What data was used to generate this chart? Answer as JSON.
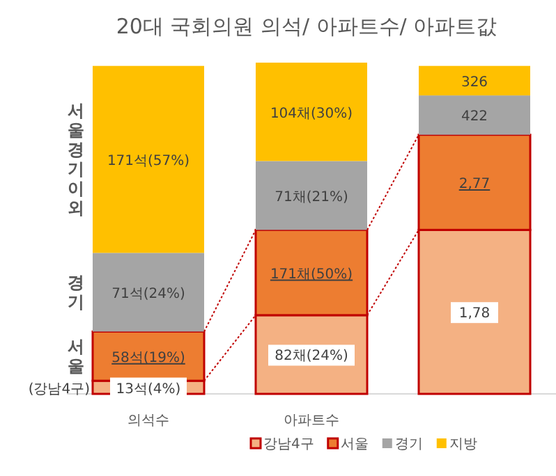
{
  "chart_data": {
    "type": "bar",
    "title": "20대 국회의원 의석/ 아파트수/ 아파트값",
    "categories": [
      "의석수",
      "아파트수",
      null
    ],
    "stacked": true,
    "series": [
      {
        "name": "강남4구",
        "color": "#f4b183",
        "values": [
          4,
          24,
          50
        ],
        "value_labels": [
          "13석(4%)",
          "82채(24%)",
          null
        ]
      },
      {
        "name": "서울",
        "color": "#ed7d31",
        "values": [
          15,
          26,
          29
        ],
        "value_labels": [
          null,
          null,
          null
        ]
      },
      {
        "name": "경기",
        "color": "#a5a5a5",
        "values": [
          24,
          21,
          12
        ],
        "value_labels": [
          "71석(24%)",
          "71채(21%)",
          null
        ]
      },
      {
        "name": "지방",
        "color": "#ffc000",
        "values": [
          57,
          30,
          9
        ],
        "value_labels": [
          "171석(57%)",
          "104채(30%)",
          null
        ]
      }
    ],
    "annotations": [
      "(강남4구)",
      "서울",
      "경기",
      "서울경기이외",
      "1,78",
      "58석(19%)",
      "171채(50%)",
      "2,77",
      "422",
      "326"
    ],
    "ylim": [
      0,
      101
    ],
    "tick_labels": "x",
    "legend": "bottom"
  }
}
